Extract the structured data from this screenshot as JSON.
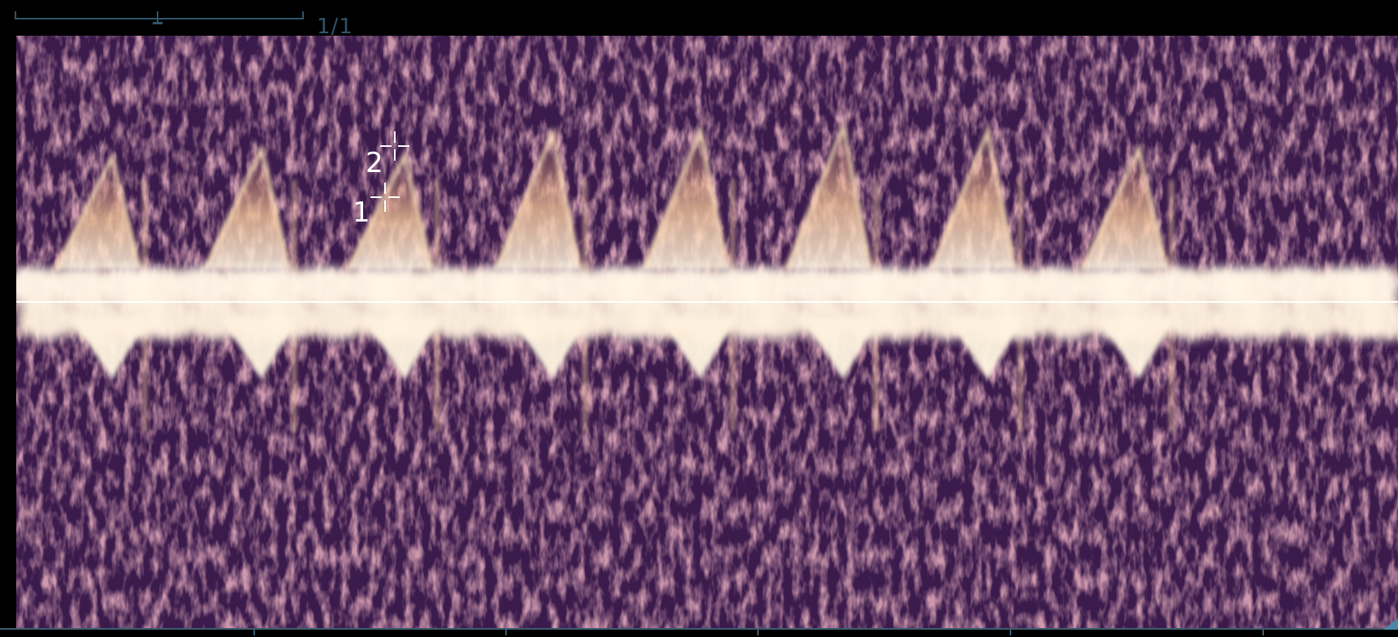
{
  "scrollbar": {
    "page_counter": "1/1"
  },
  "markers": [
    {
      "label": "1"
    },
    {
      "label": "2"
    }
  ],
  "colors": {
    "background": "#000000",
    "spectrum_dark": "#3a1a4a",
    "spectrum_mid": "#8a4a6a",
    "spectrum_bright": "#fff4dc",
    "ui_accent": "#2f5468",
    "corner_accent": "#4a86a8"
  },
  "icons": {
    "marker": "crosshair-icon",
    "scroll_thumb": "scroll-thumb-icon"
  }
}
